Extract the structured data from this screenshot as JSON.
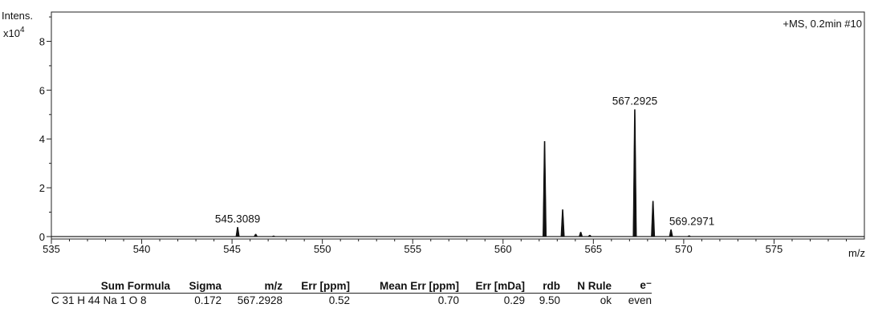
{
  "chart_data": {
    "type": "line",
    "y_label_top": "Intens.",
    "y_multiplier": "x10",
    "y_multiplier_exp": "4",
    "x_label": "m/z",
    "scan_info": "+MS, 0.2min #10",
    "xlim": [
      535,
      580
    ],
    "ylim": [
      -0.1,
      9.2
    ],
    "x_ticks": [
      535,
      540,
      545,
      550,
      555,
      560,
      565,
      570,
      575
    ],
    "x_tick_labels": [
      "535",
      "540",
      "545",
      "550",
      "555",
      "560",
      "565",
      "570",
      "575"
    ],
    "y_ticks": [
      0,
      2,
      4,
      6,
      8
    ],
    "y_tick_labels": [
      "0",
      "2",
      "4",
      "6",
      "8"
    ],
    "peaks": [
      {
        "x": 545.3089,
        "y": 0.38
      },
      {
        "x": 546.31,
        "y": 0.1
      },
      {
        "x": 547.3,
        "y": 0.03
      },
      {
        "x": 562.3,
        "y": 3.9
      },
      {
        "x": 563.3,
        "y": 1.1
      },
      {
        "x": 564.3,
        "y": 0.18
      },
      {
        "x": 564.8,
        "y": 0.06
      },
      {
        "x": 567.2925,
        "y": 5.2
      },
      {
        "x": 568.3,
        "y": 1.45
      },
      {
        "x": 569.2971,
        "y": 0.28
      },
      {
        "x": 570.3,
        "y": 0.04
      }
    ],
    "annotations": [
      {
        "text": "545.3089",
        "x": 545.3089,
        "y": 0.38
      },
      {
        "text": "567.2925",
        "x": 567.2925,
        "y": 5.2
      },
      {
        "text": "569.2971",
        "x": 569.2971,
        "y": 0.28
      }
    ]
  },
  "table": {
    "headers": [
      "Sum Formula",
      "Sigma",
      "m/z",
      "Err [ppm]",
      "Mean Err [ppm]",
      "Err [mDa]",
      "rdb",
      "N Rule",
      "e⁻"
    ],
    "rows": [
      [
        "C 31 H 44 Na 1 O 8",
        "0.172",
        "567.2928",
        "0.52",
        "0.70",
        "0.29",
        "9.50",
        "ok",
        "even"
      ]
    ]
  }
}
